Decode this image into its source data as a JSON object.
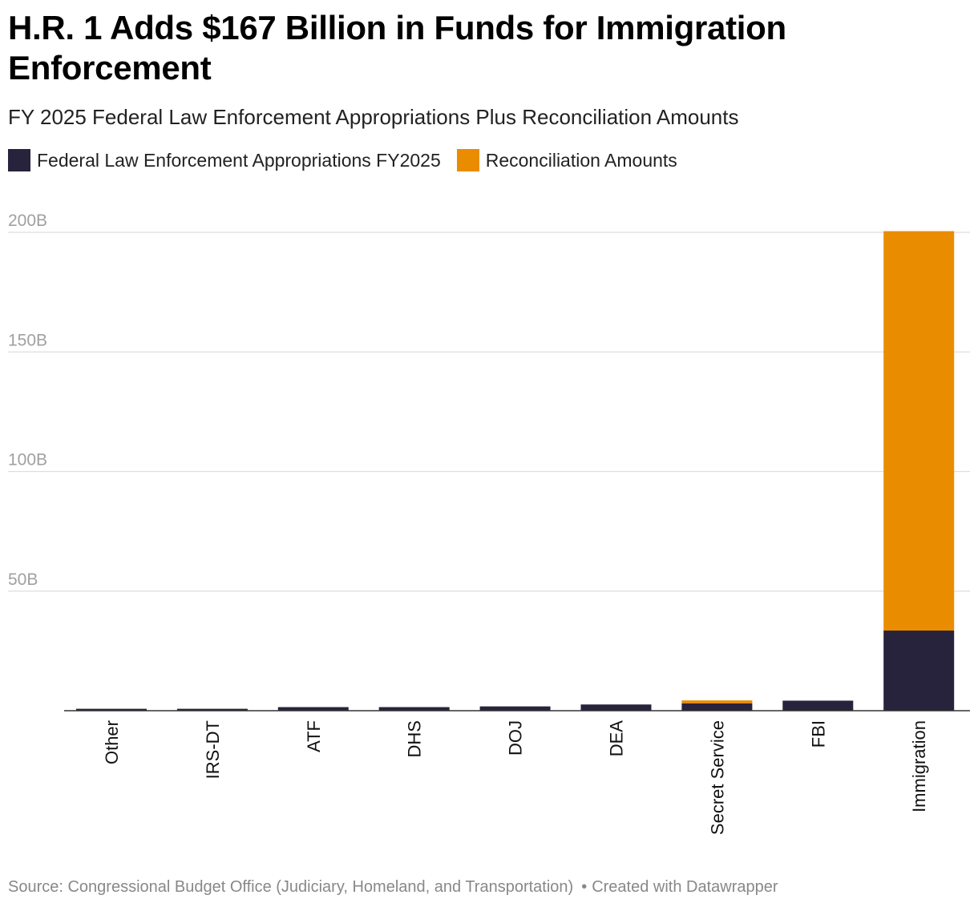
{
  "header": {
    "title": "H.R. 1 Adds $167 Billion in Funds for Immigration Enforcement",
    "subtitle": "FY 2025 Federal Law Enforcement Appropriations Plus Reconciliation Amounts"
  },
  "legend": {
    "items": [
      {
        "label": "Federal Law Enforcement Appropriations FY2025",
        "color": "#28233d"
      },
      {
        "label": "Reconciliation Amounts",
        "color": "#ea8c00"
      }
    ]
  },
  "footer": {
    "source": "Source: Congressional Budget Office (Judiciary, Homeland, and Transportation)",
    "separator": "•",
    "credit": "Created with Datawrapper"
  },
  "chart_data": {
    "type": "bar",
    "stacked": true,
    "categories": [
      "Other",
      "IRS-DT",
      "ATF",
      "DHS",
      "DOJ",
      "DEA",
      "Secret Service",
      "FBI",
      "Immigration"
    ],
    "series": [
      {
        "name": "Federal Law Enforcement Appropriations FY2025",
        "color": "#28233d",
        "values": [
          0.8,
          0.8,
          1.5,
          1.5,
          1.8,
          2.6,
          3.1,
          4.2,
          33.5
        ]
      },
      {
        "name": "Reconciliation Amounts",
        "color": "#ea8c00",
        "values": [
          0,
          0,
          0,
          0,
          0,
          0,
          1.2,
          0,
          167
        ]
      }
    ],
    "yticks": [
      {
        "value": 50,
        "label": "50B"
      },
      {
        "value": 100,
        "label": "100B"
      },
      {
        "value": 150,
        "label": "150B"
      },
      {
        "value": 200,
        "label": "200B"
      }
    ],
    "ylim": [
      0,
      200
    ],
    "xlabel": "",
    "ylabel": "",
    "grid": true,
    "legend_position": "top-left"
  }
}
